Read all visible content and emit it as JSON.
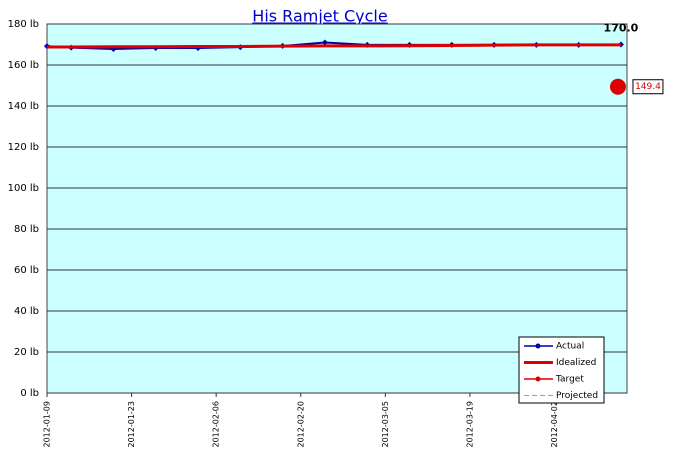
{
  "chart_data": {
    "type": "line",
    "title": "His Ramjet Cycle",
    "x": [
      "2012-01-09",
      "2012-01-13",
      "2012-01-20",
      "2012-01-27",
      "2012-02-03",
      "2012-02-10",
      "2012-02-17",
      "2012-02-24",
      "2012-03-02",
      "2012-03-09",
      "2012-03-16",
      "2012-03-23",
      "2012-03-30",
      "2012-04-06",
      "2012-04-13"
    ],
    "series": [
      {
        "name": "Actual",
        "color": "#0000aa",
        "values": [
          169.2,
          168.5,
          167.8,
          168.3,
          168.3,
          168.7,
          169.3,
          171.0,
          169.8,
          169.8,
          169.8,
          169.8,
          169.8,
          169.8,
          170.0
        ],
        "value_labels": [
          null,
          null,
          null,
          null,
          null,
          null,
          null,
          null,
          null,
          null,
          null,
          null,
          null,
          null,
          "170.0"
        ]
      },
      {
        "name": "Idealized",
        "color": "#dd0000",
        "values": [
          168.8,
          168.8,
          168.9,
          168.9,
          169.0,
          169.0,
          169.2,
          169.3,
          169.3,
          169.4,
          169.5,
          169.7,
          169.8,
          169.8,
          169.8
        ]
      },
      {
        "name": "Target",
        "color": "#dd0000",
        "values": [
          null,
          null,
          null,
          null,
          null,
          null,
          null,
          null,
          null,
          null,
          null,
          null,
          null,
          null,
          149.4
        ],
        "value_labels": [
          null,
          null,
          null,
          null,
          null,
          null,
          null,
          null,
          null,
          null,
          null,
          null,
          null,
          null,
          "149.4"
        ]
      },
      {
        "name": "Projected",
        "color": "#ff66cc",
        "values": [
          null,
          null,
          null,
          null,
          null,
          null,
          null,
          null,
          null,
          null,
          null,
          null,
          null,
          null,
          null
        ]
      }
    ],
    "xlim": [
      "2012-01-09",
      "2012-04-14"
    ],
    "xticks": [
      "2012-01-09",
      "2012-01-23",
      "2012-02-06",
      "2012-02-20",
      "2012-03-05",
      "2012-03-19",
      "2012-04-02"
    ],
    "ylim": [
      0,
      180
    ],
    "yticks": [
      {
        "value": 0,
        "label": "0 lb"
      },
      {
        "value": 20,
        "label": "20 lb"
      },
      {
        "value": 40,
        "label": "40 lb"
      },
      {
        "value": 60,
        "label": "60 lb"
      },
      {
        "value": 80,
        "label": "80 lb"
      },
      {
        "value": 100,
        "label": "100 lb"
      },
      {
        "value": 120,
        "label": "120 lb"
      },
      {
        "value": 140,
        "label": "140 lb"
      },
      {
        "value": 160,
        "label": "160 lb"
      },
      {
        "value": 180,
        "label": "180 lb"
      }
    ],
    "grid": true,
    "background": "#ccffff",
    "legend": "bottom-right"
  }
}
